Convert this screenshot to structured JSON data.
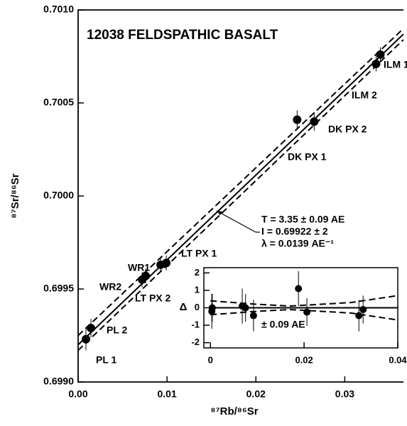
{
  "chart_data": [
    {
      "type": "scatter",
      "title": "12038 FELDSPATHIC BASALT",
      "x_label": "⁸⁷Rb/⁸⁶Sr",
      "y_label": "⁸⁷Sr/⁸⁶Sr",
      "xlim": [
        0,
        0.0366
      ],
      "ylim": [
        0.699,
        0.701
      ],
      "xticks": [
        {
          "value": 0,
          "label": "0.00"
        },
        0.01,
        0.02,
        0.03
      ],
      "yticks": [
        {
          "value": 0.699,
          "label": "0.6990"
        },
        0.6995,
        {
          "value": 0.7,
          "label": "0.7000"
        },
        0.7005,
        {
          "value": 0.701,
          "label": "0.7010"
        }
      ],
      "color": "#000000",
      "x": [
        0.00088,
        0.00144,
        0.0072,
        0.0076,
        0.00928,
        0.00992,
        0.02464,
        0.02656,
        0.03352,
        0.034
      ],
      "values": [
        0.69923,
        0.69929,
        0.69955,
        0.69957,
        0.69963,
        0.69964,
        0.70041,
        0.7004,
        0.70071,
        0.70076
      ],
      "yerr": [
        6e-05,
        5e-05,
        4e-05,
        4e-05,
        4e-05,
        4e-05,
        5e-05,
        5e-05,
        4e-05,
        4e-05
      ],
      "point_labels": [
        "PL 1",
        "PL 2",
        "WR2",
        "LT PX 2",
        "WR1",
        "LT PX 1",
        "DK PX 1",
        "DK PX 2",
        "ILM 2",
        "ILM 1"
      ],
      "lines": [
        {
          "style": "solid",
          "x": [
            0,
            0.0366
          ],
          "y": [
            0.6992,
            0.70087
          ]
        },
        {
          "style": "dashed",
          "x": [
            0,
            0.0366
          ],
          "y": [
            0.69925,
            0.7009
          ]
        },
        {
          "style": "dashed",
          "x": [
            0,
            0.0366
          ],
          "y": [
            0.69917,
            0.70084
          ]
        }
      ],
      "annotations": [
        "T = 3.35 ± 0.09 AE",
        "I = 0.69922 ± 2",
        "λ = 0.0139 AE⁻¹"
      ]
    },
    {
      "type": "scatter",
      "y_label": "Δ",
      "xlim": [
        -0.0014,
        0.04
      ],
      "ylim": [
        -2.3,
        2.3
      ],
      "xticks": [
        0,
        0.02,
        0.04
      ],
      "yticks": [
        2,
        1,
        0,
        -1,
        -2
      ],
      "color": "#000000",
      "x": [
        0.0003,
        0.0004,
        0.0068,
        0.0075,
        0.0092,
        0.0188,
        0.0206,
        0.0317,
        0.0326
      ],
      "values": [
        -0.2,
        0,
        0.1,
        0,
        -0.45,
        1.1,
        -0.25,
        -0.45,
        -0.1
      ],
      "yerr": [
        1,
        0.8,
        1,
        0.8,
        0.9,
        1,
        0.8,
        0.9,
        0.8
      ],
      "lines": [
        {
          "style": "solid",
          "x": [
            0,
            0.04
          ],
          "y": [
            0,
            0
          ]
        },
        {
          "style": "dashed",
          "x": [
            0,
            0.01,
            0.017,
            0.03,
            0.04
          ],
          "y": [
            0.4,
            0.2,
            0.1,
            0.3,
            0.7
          ]
        },
        {
          "style": "dashed",
          "x": [
            0,
            0.01,
            0.017,
            0.03,
            0.04
          ],
          "y": [
            -0.4,
            -0.2,
            -0.1,
            -0.3,
            -0.7
          ]
        }
      ],
      "annotations": [
        "± 0.09 AE"
      ]
    }
  ]
}
